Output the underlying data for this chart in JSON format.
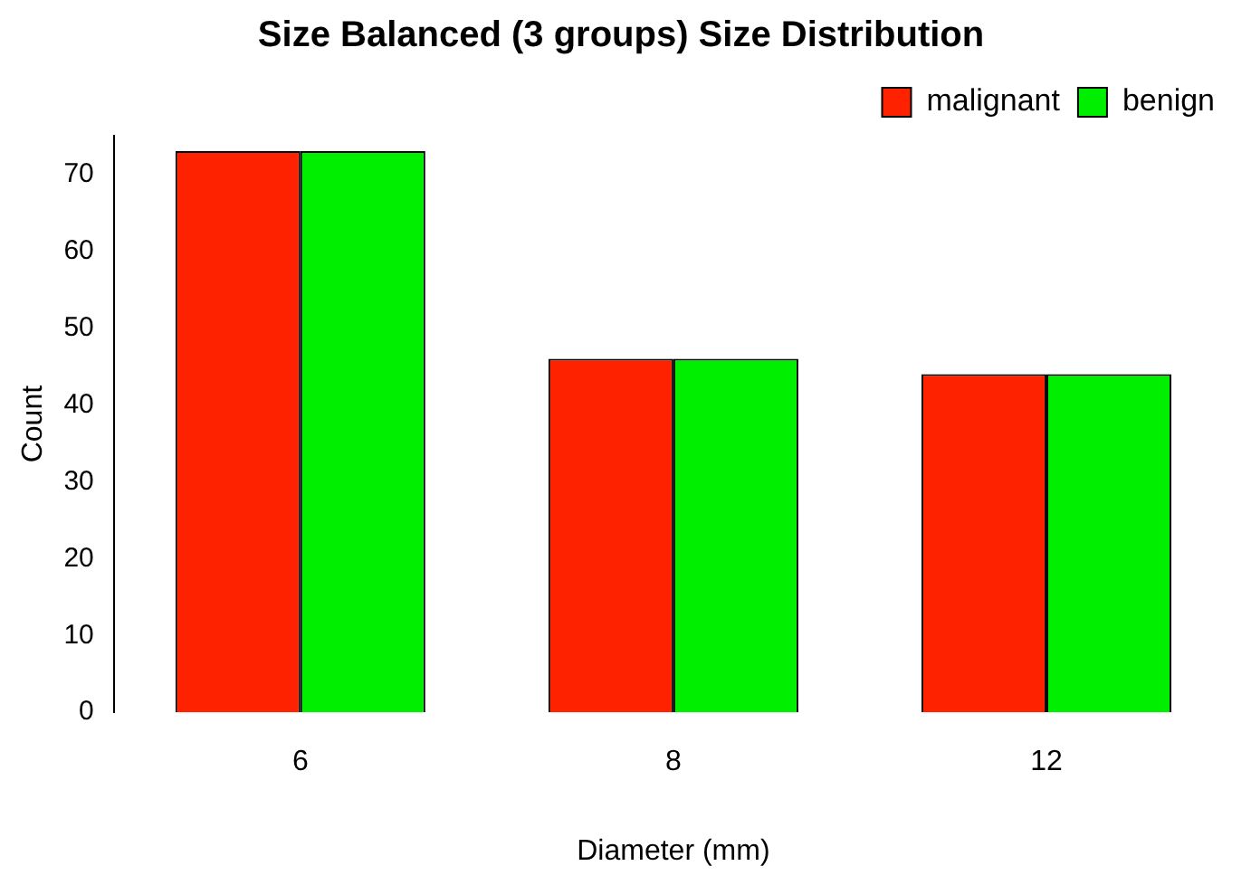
{
  "chart_data": {
    "type": "bar",
    "title": "Size Balanced (3 groups) Size Distribution",
    "xlabel": "Diameter (mm)",
    "ylabel": "Count",
    "categories": [
      "6",
      "8",
      "12"
    ],
    "series": [
      {
        "name": "malignant",
        "color": "#ff2200",
        "values": [
          73,
          46,
          44
        ]
      },
      {
        "name": "benign",
        "color": "#00ee00",
        "values": [
          73,
          46,
          44
        ]
      }
    ],
    "ylim": [
      0,
      75
    ],
    "yticks": [
      0,
      10,
      20,
      30,
      40,
      50,
      60,
      70
    ],
    "grid": false,
    "legend": "top right"
  }
}
